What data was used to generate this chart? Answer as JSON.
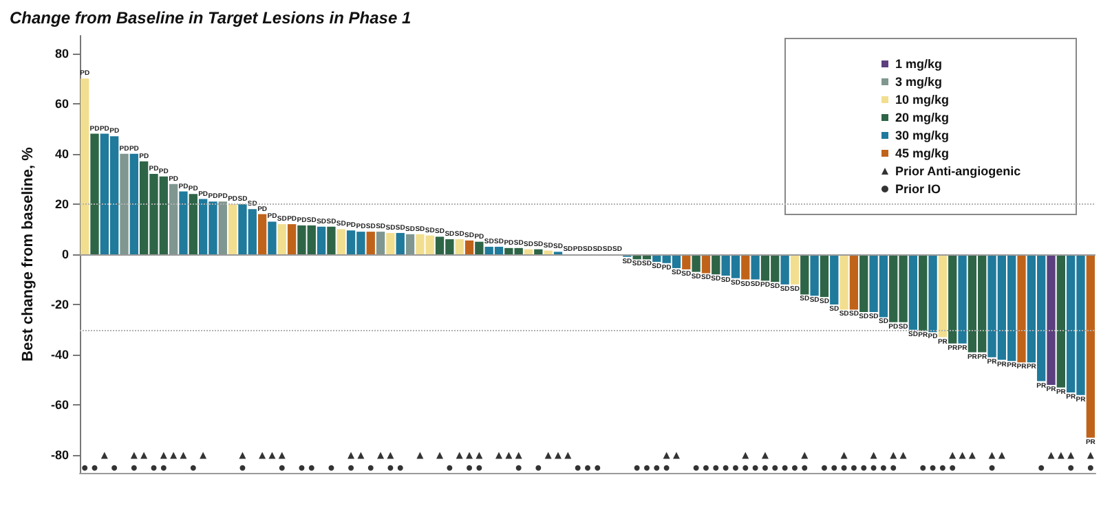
{
  "chart_data": {
    "type": "bar",
    "title": "Change from Baseline in Target Lesions in Phase 1",
    "ylabel": "Best change from baseline, %",
    "legend": "top right",
    "ylim": [
      -87,
      87
    ],
    "yticks": [
      -80,
      -60,
      -40,
      -20,
      0,
      20,
      40,
      60,
      80
    ],
    "categories": [
      null,
      null,
      null,
      null,
      null,
      null,
      null,
      null,
      null,
      null,
      null,
      null,
      null,
      null,
      null,
      null,
      null,
      null,
      null,
      null,
      null,
      null,
      null,
      null,
      null,
      null,
      null,
      null,
      null,
      null,
      null,
      null,
      null,
      null,
      null,
      null,
      null,
      null,
      null,
      null,
      null,
      null,
      null,
      null,
      null,
      null,
      null,
      null,
      null,
      null,
      null,
      null,
      null,
      null,
      null,
      null,
      null,
      null,
      null,
      null,
      null,
      null,
      null,
      null,
      null,
      null,
      null,
      null,
      null,
      null,
      null,
      null,
      null,
      null,
      null,
      null,
      null,
      null,
      null,
      null,
      null,
      null,
      null,
      null,
      null,
      null,
      null,
      null,
      null,
      null,
      null,
      null,
      null,
      null,
      null,
      null,
      null,
      null,
      null,
      null,
      null,
      null,
      null
    ],
    "ref_lines": [
      {
        "axis": "y",
        "value": 0,
        "color": "#9a9a9a",
        "line_style": "solid"
      },
      {
        "axis": "y",
        "value": 20,
        "color": "#b0b0b0",
        "line_style": "dotted"
      },
      {
        "axis": "y",
        "value": -30,
        "color": "#b0b0b0",
        "line_style": "dotted"
      }
    ],
    "series": [
      {
        "name": "1 mg/kg",
        "color": "#5b3f7e",
        "values": [
          null,
          null,
          null,
          null,
          null,
          null,
          null,
          null,
          null,
          null,
          null,
          null,
          null,
          null,
          null,
          null,
          null,
          null,
          null,
          null,
          null,
          null,
          null,
          null,
          null,
          null,
          null,
          null,
          null,
          null,
          null,
          null,
          null,
          null,
          null,
          null,
          null,
          null,
          null,
          null,
          null,
          null,
          null,
          null,
          null,
          null,
          null,
          null,
          null,
          null,
          null,
          null,
          null,
          null,
          null,
          null,
          null,
          null,
          null,
          null,
          null,
          null,
          null,
          null,
          null,
          null,
          null,
          null,
          null,
          null,
          null,
          null,
          null,
          null,
          null,
          null,
          null,
          null,
          null,
          null,
          null,
          null,
          null,
          null,
          null,
          null,
          null,
          null,
          null,
          null,
          null,
          null,
          null,
          null,
          null,
          null,
          null,
          null,
          -52,
          null,
          null,
          null,
          null
        ],
        "value_labels": [
          null,
          null,
          null,
          null,
          null,
          null,
          null,
          null,
          null,
          null,
          null,
          null,
          null,
          null,
          null,
          null,
          null,
          null,
          null,
          null,
          null,
          null,
          null,
          null,
          null,
          null,
          null,
          null,
          null,
          null,
          null,
          null,
          null,
          null,
          null,
          null,
          null,
          null,
          null,
          null,
          null,
          null,
          null,
          null,
          null,
          null,
          null,
          null,
          null,
          null,
          null,
          null,
          null,
          null,
          null,
          null,
          null,
          null,
          null,
          null,
          null,
          null,
          null,
          null,
          null,
          null,
          null,
          null,
          null,
          null,
          null,
          null,
          null,
          null,
          null,
          null,
          null,
          null,
          null,
          null,
          null,
          null,
          null,
          null,
          null,
          null,
          null,
          null,
          null,
          null,
          null,
          null,
          null,
          null,
          null,
          null,
          null,
          null,
          "PR",
          null,
          null,
          null,
          null
        ]
      },
      {
        "name": "3 mg/kg",
        "color": "#7f9790",
        "values": [
          null,
          null,
          null,
          null,
          40,
          null,
          null,
          null,
          null,
          28,
          null,
          null,
          null,
          null,
          21,
          null,
          null,
          null,
          null,
          null,
          null,
          null,
          null,
          null,
          null,
          null,
          null,
          null,
          null,
          null,
          9,
          null,
          null,
          8,
          null,
          null,
          null,
          null,
          null,
          null,
          null,
          null,
          null,
          null,
          null,
          null,
          null,
          null,
          null,
          null,
          null,
          null,
          null,
          null,
          null,
          null,
          null,
          null,
          null,
          null,
          null,
          null,
          null,
          null,
          null,
          null,
          null,
          null,
          null,
          null,
          null,
          null,
          null,
          null,
          null,
          null,
          null,
          null,
          null,
          null,
          null,
          null,
          null,
          null,
          null,
          null,
          null,
          null,
          null,
          null,
          null,
          null,
          null,
          null,
          null,
          null,
          null,
          null,
          null,
          null,
          null,
          null,
          null
        ],
        "value_labels": [
          null,
          null,
          null,
          null,
          "PD",
          null,
          null,
          null,
          null,
          "PD",
          null,
          null,
          null,
          null,
          "PD",
          null,
          null,
          null,
          null,
          null,
          null,
          null,
          null,
          null,
          null,
          null,
          null,
          null,
          null,
          null,
          "SD",
          null,
          null,
          "SD",
          null,
          null,
          null,
          null,
          null,
          null,
          null,
          null,
          null,
          null,
          null,
          null,
          null,
          null,
          null,
          null,
          null,
          null,
          null,
          null,
          null,
          null,
          null,
          null,
          null,
          null,
          null,
          null,
          null,
          null,
          null,
          null,
          null,
          null,
          null,
          null,
          null,
          null,
          null,
          null,
          null,
          null,
          null,
          null,
          null,
          null,
          null,
          null,
          null,
          null,
          null,
          null,
          null,
          null,
          null,
          null,
          null,
          null,
          null,
          null,
          null,
          null,
          null,
          null,
          null,
          null,
          null,
          null,
          null
        ]
      },
      {
        "name": "10 mg/kg",
        "color": "#f2de8f",
        "values": [
          70,
          null,
          null,
          null,
          null,
          null,
          null,
          null,
          null,
          null,
          null,
          null,
          null,
          null,
          null,
          20,
          null,
          null,
          null,
          null,
          12,
          null,
          null,
          null,
          null,
          null,
          10,
          null,
          null,
          null,
          null,
          8.5,
          null,
          null,
          8,
          7.5,
          null,
          null,
          6,
          null,
          null,
          null,
          null,
          null,
          null,
          2,
          null,
          1.5,
          null,
          null,
          null,
          null,
          null,
          null,
          null,
          null,
          null,
          null,
          null,
          null,
          null,
          null,
          null,
          null,
          null,
          null,
          null,
          null,
          null,
          null,
          null,
          null,
          -12,
          null,
          null,
          null,
          null,
          -22,
          null,
          null,
          null,
          null,
          null,
          null,
          null,
          null,
          null,
          -33,
          null,
          null,
          null,
          null,
          null,
          null,
          null,
          null,
          null,
          null,
          null,
          null,
          null,
          null,
          null
        ],
        "value_labels": [
          "PD",
          null,
          null,
          null,
          null,
          null,
          null,
          null,
          null,
          null,
          null,
          null,
          null,
          null,
          null,
          "PD",
          null,
          null,
          null,
          null,
          "SD",
          null,
          null,
          null,
          null,
          null,
          "SD",
          null,
          null,
          null,
          null,
          "SD",
          null,
          null,
          "SD",
          "SD",
          null,
          null,
          "SD",
          null,
          null,
          null,
          null,
          null,
          null,
          "SD",
          null,
          "SD",
          null,
          null,
          null,
          null,
          null,
          null,
          null,
          null,
          null,
          null,
          null,
          null,
          null,
          null,
          null,
          null,
          null,
          null,
          null,
          null,
          null,
          null,
          null,
          null,
          "SD",
          null,
          null,
          null,
          null,
          "SD",
          null,
          null,
          null,
          null,
          null,
          null,
          null,
          null,
          null,
          "PR",
          null,
          null,
          null,
          null,
          null,
          null,
          null,
          null,
          null,
          null,
          null,
          null,
          null,
          null,
          null
        ]
      },
      {
        "name": "20 mg/kg",
        "color": "#2e6547",
        "values": [
          null,
          48,
          null,
          null,
          null,
          null,
          37,
          32,
          31,
          null,
          null,
          24,
          null,
          null,
          null,
          null,
          null,
          null,
          null,
          null,
          null,
          null,
          11.5,
          11.5,
          null,
          11,
          null,
          null,
          null,
          null,
          null,
          null,
          null,
          null,
          null,
          null,
          7,
          6,
          null,
          null,
          5,
          null,
          null,
          2.5,
          2.5,
          null,
          2,
          null,
          null,
          null,
          null,
          null,
          null,
          null,
          null,
          null,
          -2,
          -2,
          null,
          null,
          null,
          null,
          -7,
          null,
          -8,
          null,
          null,
          null,
          null,
          -10.5,
          -11,
          null,
          null,
          -16,
          null,
          -17,
          null,
          null,
          null,
          -23,
          null,
          null,
          -27,
          -27,
          null,
          -30.5,
          null,
          null,
          -35.5,
          null,
          -39,
          -39,
          null,
          null,
          null,
          null,
          null,
          null,
          null,
          -53,
          null,
          null,
          null
        ],
        "value_labels": [
          null,
          "PD",
          null,
          null,
          null,
          null,
          "PD",
          "PD",
          "PD",
          null,
          null,
          "PD",
          null,
          null,
          null,
          null,
          null,
          null,
          null,
          null,
          null,
          null,
          "PD",
          "SD",
          null,
          "SD",
          null,
          null,
          null,
          null,
          null,
          null,
          null,
          null,
          null,
          null,
          "SD",
          "SD",
          null,
          null,
          "PD",
          null,
          null,
          "PD",
          "SD",
          null,
          "SD",
          null,
          null,
          null,
          null,
          null,
          null,
          null,
          null,
          null,
          "SD",
          "SD",
          null,
          null,
          null,
          null,
          "SD",
          null,
          "SD",
          null,
          null,
          null,
          null,
          "PD",
          "SD",
          null,
          null,
          "SD",
          null,
          "SD",
          null,
          null,
          null,
          "SD",
          null,
          null,
          "PD",
          "SD",
          null,
          "PR",
          null,
          null,
          "PR",
          null,
          "PR",
          "PR",
          null,
          null,
          null,
          null,
          null,
          null,
          null,
          "PR",
          null,
          null,
          null
        ]
      },
      {
        "name": "30 mg/kg",
        "color": "#1f7a9c",
        "values": [
          null,
          null,
          48,
          47,
          null,
          40,
          null,
          null,
          null,
          null,
          25,
          null,
          22,
          21,
          null,
          null,
          20,
          18,
          null,
          13,
          null,
          null,
          null,
          null,
          11,
          null,
          null,
          9.5,
          9,
          null,
          null,
          null,
          8.5,
          null,
          null,
          null,
          null,
          null,
          null,
          null,
          null,
          3,
          3,
          null,
          null,
          null,
          null,
          null,
          1,
          0,
          0,
          0,
          0,
          0,
          0,
          -1,
          null,
          null,
          -3,
          -3.5,
          -5.5,
          null,
          null,
          null,
          null,
          -8.5,
          -9.5,
          null,
          -10,
          null,
          null,
          -12,
          null,
          null,
          -16.5,
          null,
          -20,
          null,
          null,
          null,
          -23,
          -25,
          null,
          null,
          -30,
          null,
          -31,
          null,
          null,
          -35.5,
          null,
          null,
          -41,
          -42,
          -42.5,
          null,
          -43,
          -50.5,
          null,
          null,
          -55,
          -56,
          null
        ],
        "value_labels": [
          null,
          null,
          "PD",
          "PD",
          null,
          "PD",
          null,
          null,
          null,
          null,
          "PD",
          null,
          "PD",
          "PD",
          null,
          null,
          "SD",
          "SD",
          null,
          "PD",
          null,
          null,
          null,
          null,
          "SD",
          null,
          null,
          "PD",
          "PD",
          null,
          null,
          null,
          "SD",
          null,
          null,
          null,
          null,
          null,
          null,
          null,
          null,
          "SD",
          "SD",
          null,
          null,
          null,
          null,
          null,
          "SD",
          "SD",
          "PD",
          "SD",
          "SD",
          "SD",
          "SD",
          "SD",
          null,
          null,
          "SD",
          "PD",
          "SD",
          null,
          null,
          null,
          null,
          "SD",
          "SD",
          null,
          "SD",
          null,
          null,
          "SD",
          null,
          null,
          "SD",
          null,
          "SD",
          null,
          null,
          null,
          "SD",
          "SD",
          null,
          null,
          "SD",
          null,
          "PD",
          null,
          null,
          "PR",
          null,
          null,
          "PR",
          "PR",
          "PR",
          null,
          "PR",
          "PR",
          null,
          null,
          "PR",
          "PR",
          null
        ]
      },
      {
        "name": "45 mg/kg",
        "color": "#c0631a",
        "values": [
          null,
          null,
          null,
          null,
          null,
          null,
          null,
          null,
          null,
          null,
          null,
          null,
          null,
          null,
          null,
          null,
          null,
          null,
          16,
          null,
          null,
          12,
          null,
          null,
          null,
          null,
          null,
          null,
          null,
          9,
          null,
          null,
          null,
          null,
          null,
          null,
          null,
          null,
          null,
          5.5,
          null,
          null,
          null,
          null,
          null,
          null,
          null,
          null,
          null,
          null,
          null,
          null,
          null,
          null,
          null,
          null,
          null,
          null,
          null,
          null,
          null,
          -6,
          null,
          -7.5,
          null,
          null,
          null,
          -10,
          null,
          null,
          null,
          null,
          null,
          null,
          null,
          null,
          null,
          null,
          -22,
          null,
          null,
          null,
          null,
          null,
          null,
          null,
          null,
          null,
          null,
          null,
          null,
          null,
          null,
          null,
          null,
          -43,
          null,
          null,
          null,
          null,
          null,
          null,
          -73
        ],
        "value_labels": [
          null,
          null,
          null,
          null,
          null,
          null,
          null,
          null,
          null,
          null,
          null,
          null,
          null,
          null,
          null,
          null,
          null,
          null,
          "PD",
          null,
          null,
          "PD",
          null,
          null,
          null,
          null,
          null,
          null,
          null,
          "SD",
          null,
          null,
          null,
          null,
          null,
          null,
          null,
          null,
          null,
          "SD",
          null,
          null,
          null,
          null,
          null,
          null,
          null,
          null,
          null,
          null,
          null,
          null,
          null,
          null,
          null,
          null,
          null,
          null,
          null,
          null,
          null,
          "SD",
          null,
          "SD",
          null,
          null,
          null,
          "SD",
          null,
          null,
          null,
          null,
          null,
          null,
          null,
          null,
          null,
          null,
          "SD",
          null,
          null,
          null,
          null,
          null,
          null,
          null,
          null,
          null,
          null,
          null,
          null,
          null,
          null,
          null,
          null,
          "PR",
          null,
          null,
          null,
          null,
          null,
          null,
          "PR"
        ]
      },
      {
        "name": "Prior Anti-angiogenic",
        "type": "scatter",
        "marker": "triangle",
        "color": "#000000",
        "values": [
          null,
          null,
          -80,
          null,
          null,
          -80,
          -80,
          null,
          -80,
          -80,
          -80,
          null,
          -80,
          null,
          null,
          null,
          -80,
          null,
          -80,
          -80,
          -80,
          null,
          null,
          null,
          null,
          null,
          null,
          -80,
          -80,
          null,
          -80,
          -80,
          null,
          null,
          -80,
          null,
          -80,
          null,
          -80,
          -80,
          -80,
          null,
          -80,
          -80,
          -80,
          null,
          null,
          -80,
          -80,
          -80,
          null,
          null,
          null,
          null,
          null,
          null,
          null,
          null,
          null,
          -80,
          -80,
          null,
          null,
          null,
          null,
          null,
          null,
          -80,
          null,
          -80,
          null,
          null,
          null,
          -80,
          null,
          null,
          null,
          -80,
          null,
          null,
          -80,
          null,
          -80,
          -80,
          null,
          null,
          null,
          null,
          -80,
          -80,
          -80,
          null,
          -80,
          -80,
          null,
          null,
          null,
          null,
          -80,
          -80,
          -80,
          null,
          -80
        ]
      },
      {
        "name": "Prior IO",
        "type": "scatter",
        "marker": "circle",
        "color": "#000000",
        "values": [
          -85,
          -85,
          null,
          -85,
          null,
          -85,
          null,
          -85,
          -85,
          null,
          null,
          -85,
          null,
          null,
          null,
          null,
          -85,
          null,
          null,
          null,
          -85,
          null,
          -85,
          -85,
          null,
          -85,
          null,
          -85,
          null,
          -85,
          null,
          -85,
          -85,
          null,
          null,
          null,
          null,
          -85,
          null,
          -85,
          -85,
          null,
          null,
          null,
          -85,
          null,
          -85,
          null,
          null,
          null,
          -85,
          -85,
          -85,
          null,
          null,
          null,
          -85,
          -85,
          -85,
          -85,
          null,
          null,
          -85,
          -85,
          -85,
          -85,
          -85,
          -85,
          -85,
          -85,
          -85,
          -85,
          -85,
          -85,
          null,
          -85,
          -85,
          -85,
          -85,
          -85,
          -85,
          -85,
          -85,
          null,
          null,
          -85,
          -85,
          -85,
          -85,
          null,
          null,
          null,
          -85,
          null,
          null,
          null,
          null,
          -85,
          null,
          null,
          -85,
          null,
          -85
        ]
      }
    ]
  }
}
